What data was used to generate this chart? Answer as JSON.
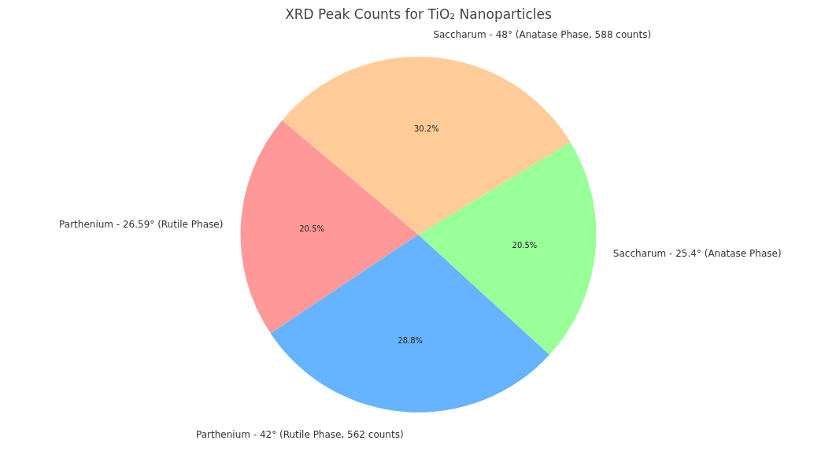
{
  "chart_data": {
    "type": "pie",
    "title": "XRD Peak Counts for TiO₂ Nanoparticles",
    "categories": [
      "Parthenium - 26.59° (Rutile Phase)",
      "Parthenium - 42° (Rutile Phase, 562 counts)",
      "Saccharum - 25.4° (Anatase Phase)",
      "Saccharum - 48° (Anatase Phase, 588 counts)"
    ],
    "values": [
      20.5,
      28.8,
      20.5,
      30.2
    ],
    "colors": [
      "#ff9999",
      "#66b3ff",
      "#99ff99",
      "#ffcc99"
    ],
    "value_labels": [
      "20.5%",
      "28.8%",
      "20.5%",
      "30.2%"
    ]
  }
}
